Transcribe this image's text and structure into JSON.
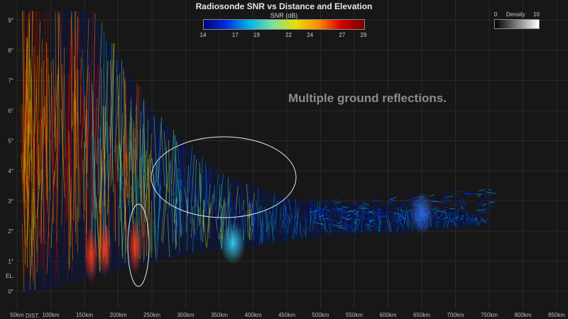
{
  "chart_data": {
    "type": "heatmap",
    "title": "Radiosonde SNR vs Distance and Elevation",
    "xlabel": "DIST.",
    "ylabel": "EL.",
    "x_unit": "km",
    "y_unit": "°",
    "xlim": [
      50,
      850
    ],
    "ylim": [
      -0.5,
      9.3
    ],
    "x_ticks": [
      "50km",
      "100km",
      "150km",
      "200km",
      "250km",
      "300km",
      "350km",
      "400km",
      "450km",
      "500km",
      "550km",
      "600km",
      "650km",
      "700km",
      "750km",
      "800km",
      "850km"
    ],
    "y_ticks": [
      "0°",
      "1°",
      "2°",
      "3°",
      "4°",
      "5°",
      "6°",
      "7°",
      "8°",
      "9°"
    ],
    "grid": true,
    "colorbar": {
      "label": "SNR (dB)",
      "ticks": [
        14,
        17,
        19,
        22,
        24,
        27,
        29
      ],
      "colors": [
        "#00007a",
        "#0030e0",
        "#00b4e6",
        "#7fe0a0",
        "#e6e000",
        "#ff8a00",
        "#d00000",
        "#7a0000"
      ]
    },
    "density_legend": {
      "label": "Density",
      "min": 0,
      "max": 10
    },
    "annotation": "Multiple ground reflections.",
    "highlights": [
      {
        "kind": "ellipse",
        "center": [
          225,
          1.5
        ],
        "note": "narrow vertical band near 225 km"
      },
      {
        "kind": "ellipse",
        "center": [
          355,
          3.7
        ],
        "note": "fan of reflection traces near 350 km"
      }
    ],
    "envelope": {
      "top": [
        [
          110,
          9.3
        ],
        [
          160,
          9.3
        ],
        [
          200,
          7.8
        ],
        [
          250,
          6.0
        ],
        [
          300,
          4.9
        ],
        [
          350,
          3.9
        ],
        [
          450,
          3.1
        ],
        [
          550,
          2.9
        ],
        [
          650,
          2.8
        ],
        [
          700,
          2.7
        ],
        [
          750,
          2.4
        ]
      ],
      "bottom": [
        [
          60,
          -0.1
        ],
        [
          100,
          0.1
        ],
        [
          150,
          0.4
        ],
        [
          200,
          0.7
        ],
        [
          250,
          1.0
        ],
        [
          300,
          1.2
        ],
        [
          400,
          1.5
        ],
        [
          500,
          1.8
        ],
        [
          600,
          1.9
        ],
        [
          700,
          2.1
        ],
        [
          750,
          2.2
        ]
      ]
    },
    "hotspots": [
      {
        "x": 180,
        "y": 1.4,
        "snr": 28
      },
      {
        "x": 225,
        "y": 1.5,
        "snr": 29
      },
      {
        "x": 160,
        "y": 1.2,
        "snr": 26
      },
      {
        "x": 370,
        "y": 1.6,
        "snr": 22
      },
      {
        "x": 650,
        "y": 2.6,
        "snr": 16
      }
    ]
  }
}
